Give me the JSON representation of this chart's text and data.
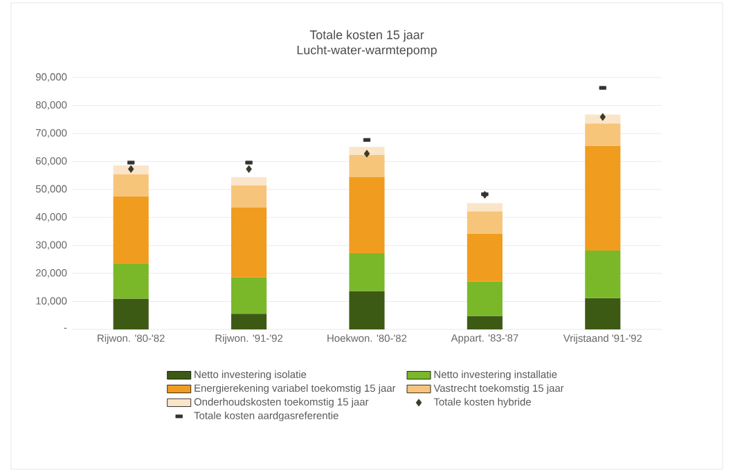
{
  "chart_data": {
    "type": "bar",
    "stacked": true,
    "title": "Totale kosten 15 jaar",
    "subtitle": "Lucht-water-warmtepomp",
    "categories": [
      "Rijwon. '80-'82",
      "Rijwon. '91-'92",
      "Hoekwon. '80-'82",
      "Appart. '83-'87",
      "Vrijstaand '91-'92"
    ],
    "series": [
      {
        "name": "Netto investering isolatie",
        "color": "#3d5a14",
        "values": [
          11000,
          5600,
          13700,
          4800,
          11200
        ]
      },
      {
        "name": "Netto investering installatie",
        "color": "#7ab829",
        "values": [
          12700,
          13000,
          13500,
          12300,
          17000
        ]
      },
      {
        "name": "Energierekening variabel toekomstig 15 jaar",
        "color": "#f09c1e",
        "values": [
          23900,
          24900,
          27200,
          17000,
          37400
        ]
      },
      {
        "name": "Vastrecht toekomstig 15 jaar",
        "color": "#f7c57a",
        "values": [
          7900,
          7900,
          7900,
          8100,
          8000
        ]
      },
      {
        "name": "Onderhoudskosten toekomstig 15 jaar",
        "color": "#fbe5c8",
        "values": [
          3100,
          3000,
          2900,
          2900,
          3200
        ]
      },
      {
        "name": "Totale kosten hybride",
        "type": "scatter",
        "marker": "diamond",
        "color": "#3b3b2b",
        "values": [
          57300,
          57300,
          62800,
          48100,
          75900
        ]
      },
      {
        "name": "Totale kosten aardgasreferentie",
        "type": "scatter",
        "marker": "square",
        "color": "#333333",
        "values": [
          59600,
          59600,
          67700,
          48300,
          86300
        ]
      }
    ],
    "ylim": [
      0,
      90000
    ],
    "yticks": [
      {
        "value": 0,
        "label": "-"
      },
      {
        "value": 10000,
        "label": "10,000"
      },
      {
        "value": 20000,
        "label": "20,000"
      },
      {
        "value": 30000,
        "label": "30,000"
      },
      {
        "value": 40000,
        "label": "40,000"
      },
      {
        "value": 50000,
        "label": "50,000"
      },
      {
        "value": 60000,
        "label": "60,000"
      },
      {
        "value": 70000,
        "label": "70,000"
      },
      {
        "value": 80000,
        "label": "80,000"
      },
      {
        "value": 90000,
        "label": "90,000"
      }
    ],
    "grid": "y",
    "legend": "bottom"
  }
}
